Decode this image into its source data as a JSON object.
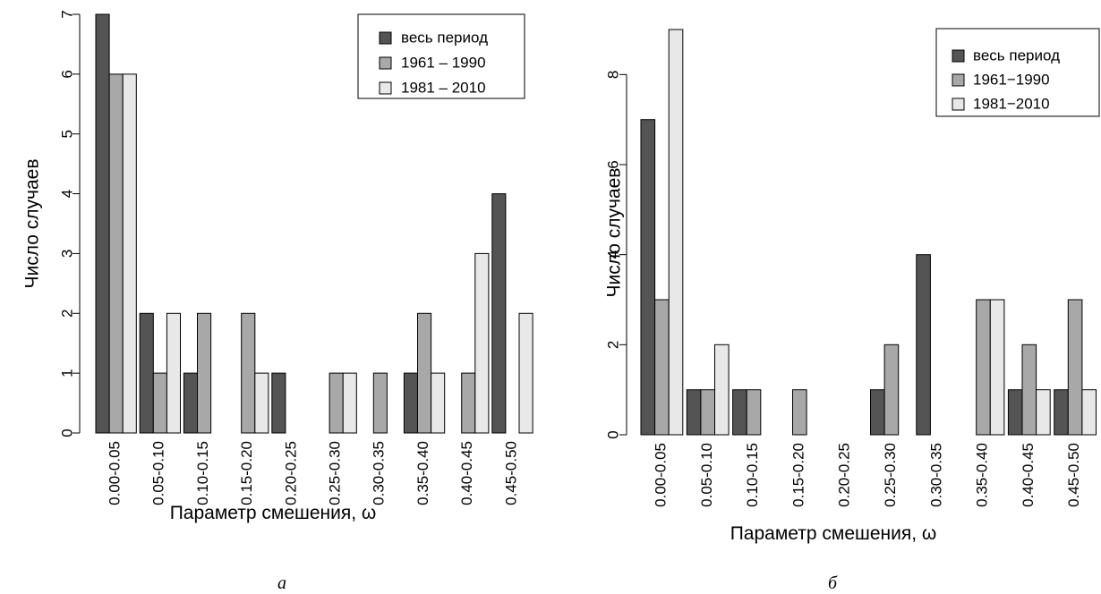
{
  "colors": {
    "series": [
      "#545454",
      "#a8a8a8",
      "#e8e8e8"
    ],
    "stroke": "#000000"
  },
  "chart_data": [
    {
      "type": "bar",
      "panel_label": "а",
      "xlabel": "Параметр смешения, ω",
      "ylabel": "Число случаев",
      "categories": [
        "0.00-0.05",
        "0.05-0.10",
        "0.10-0.15",
        "0.15-0.20",
        "0.20-0.25",
        "0.25-0.30",
        "0.30-0.35",
        "0.35-0.40",
        "0.40-0.45",
        "0.45-0.50"
      ],
      "series": [
        {
          "name": "весь период",
          "values": [
            7,
            2,
            1,
            0,
            1,
            0,
            0,
            1,
            0,
            4
          ]
        },
        {
          "name": "1961 – 1990",
          "values": [
            6,
            1,
            2,
            2,
            0,
            1,
            1,
            2,
            1,
            0
          ]
        },
        {
          "name": "1981 – 2010",
          "values": [
            6,
            2,
            0,
            1,
            0,
            1,
            0,
            1,
            3,
            2
          ]
        }
      ],
      "yticks": [
        0,
        1,
        2,
        3,
        4,
        5,
        6,
        7
      ],
      "ylim": [
        0,
        7
      ],
      "grid": false,
      "legend_position": "top-right"
    },
    {
      "type": "bar",
      "panel_label": "б",
      "xlabel": "Параметр смешения, ω",
      "ylabel": "Число случаев",
      "categories": [
        "0.00-0.05",
        "0.05-0.10",
        "0.10-0.15",
        "0.15-0.20",
        "0.20-0.25",
        "0.25-0.30",
        "0.30-0.35",
        "0.35-0.40",
        "0.40-0.45",
        "0.45-0.50"
      ],
      "series": [
        {
          "name": "весь период",
          "values": [
            7,
            1,
            1,
            0,
            0,
            1,
            4,
            0,
            1,
            1
          ]
        },
        {
          "name": "1961−1990",
          "values": [
            3,
            1,
            1,
            1,
            0,
            2,
            0,
            3,
            2,
            3
          ]
        },
        {
          "name": "1981−2010",
          "values": [
            9,
            2,
            0,
            0,
            0,
            0,
            0,
            3,
            1,
            1
          ]
        }
      ],
      "yticks": [
        0,
        2,
        4,
        6,
        8
      ],
      "ylim": [
        0,
        9
      ],
      "grid": false,
      "legend_position": "top-right"
    }
  ]
}
